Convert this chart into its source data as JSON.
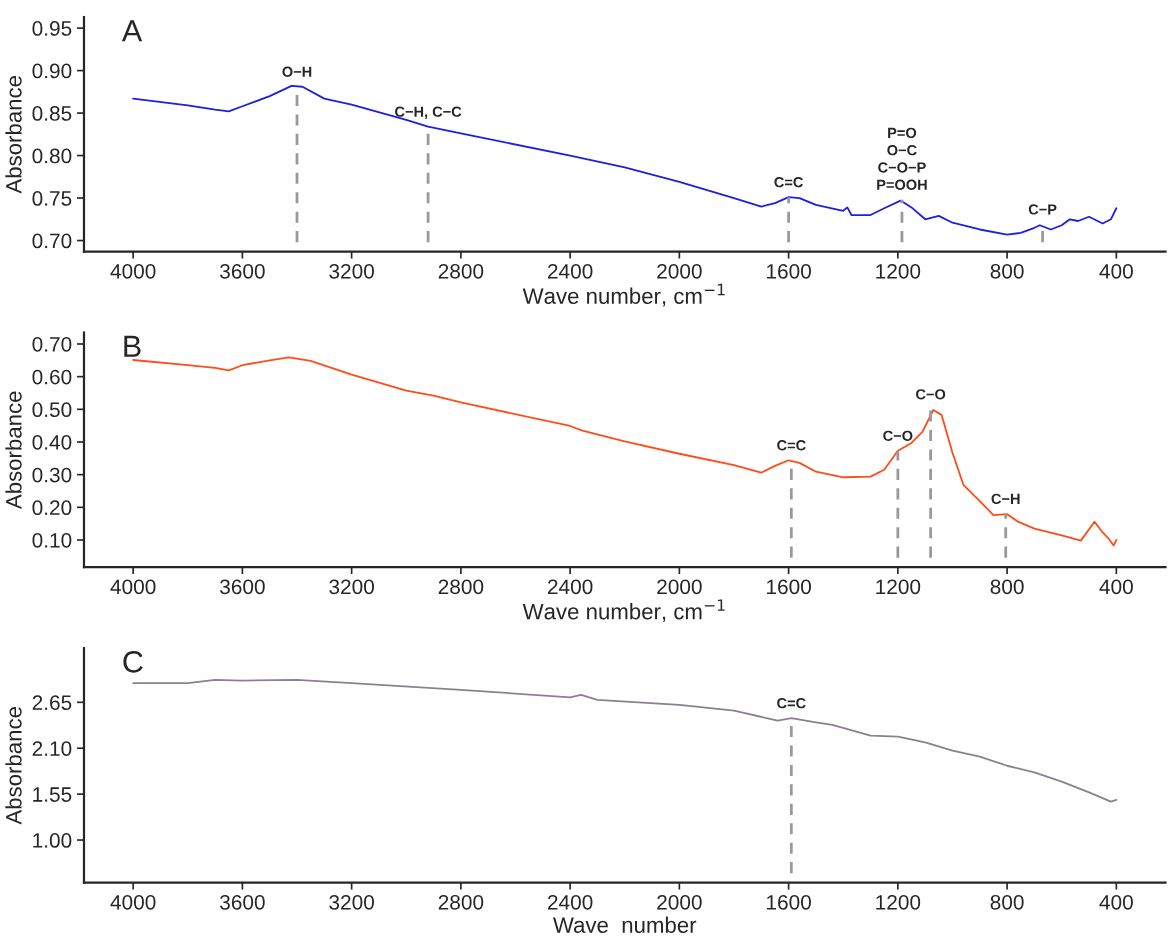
{
  "chart_data": [
    {
      "type": "line",
      "title": "A",
      "xlabel": "Wave number, cm$^{−1}$",
      "ylabel": "Absorbance",
      "x": [
        4000,
        3800,
        3700,
        3650,
        3600,
        3500,
        3420,
        3380,
        3300,
        3200,
        3000,
        2920,
        2800,
        2400,
        2200,
        2000,
        1800,
        1700,
        1650,
        1600,
        1560,
        1500,
        1400,
        1385,
        1370,
        1300,
        1250,
        1190,
        1150,
        1100,
        1050,
        1000,
        900,
        800,
        750,
        700,
        680,
        640,
        600,
        570,
        540,
        500,
        450,
        420,
        400
      ],
      "series": [
        {
          "color": "#1f1fdc",
          "values": [
            0.867,
            0.859,
            0.854,
            0.852,
            0.858,
            0.87,
            0.882,
            0.881,
            0.867,
            0.86,
            0.842,
            0.834,
            0.826,
            0.8,
            0.786,
            0.769,
            0.75,
            0.74,
            0.744,
            0.751,
            0.75,
            0.742,
            0.735,
            0.739,
            0.73,
            0.73,
            0.738,
            0.747,
            0.739,
            0.725,
            0.729,
            0.721,
            0.713,
            0.707,
            0.709,
            0.715,
            0.718,
            0.713,
            0.718,
            0.725,
            0.723,
            0.728,
            0.72,
            0.725,
            0.738
          ]
        }
      ],
      "xlim": [
        4180,
        220
      ],
      "xticks": [
        4000,
        3600,
        3200,
        2800,
        2400,
        2000,
        1600,
        1200,
        800,
        400
      ],
      "ylim": [
        0.687,
        0.963
      ],
      "yticks": [
        {
          "value": 0.7,
          "label": "0.70"
        },
        {
          "value": 0.75,
          "label": "0.75"
        },
        {
          "value": 0.8,
          "label": "0.80"
        },
        {
          "value": 0.85,
          "label": "0.85"
        },
        {
          "value": 0.9,
          "label": "0.90"
        },
        {
          "value": 0.95,
          "label": "0.95"
        }
      ],
      "annotations": [
        {
          "text": "O−H",
          "x": 3400,
          "y": 0.881
        },
        {
          "text": "C−H, C−C",
          "x": 2920,
          "y": 0.834
        },
        {
          "text": "C=C",
          "x": 1600,
          "y": 0.751
        },
        {
          "text": "P=O\nO−C\nC−O−P\nP=OOH",
          "x": 1185,
          "y": 0.748
        },
        {
          "text": "C−P",
          "x": 670,
          "y": 0.719
        }
      ],
      "grid": false,
      "legend": false
    },
    {
      "type": "line",
      "title": "B",
      "xlabel": "Wave number, cm$^{−1}$",
      "ylabel": "Absorbance",
      "x": [
        4000,
        3800,
        3700,
        3650,
        3600,
        3500,
        3430,
        3350,
        3200,
        3000,
        2900,
        2800,
        2400,
        2355,
        2200,
        2000,
        1800,
        1700,
        1650,
        1600,
        1560,
        1500,
        1400,
        1300,
        1250,
        1200,
        1150,
        1110,
        1070,
        1040,
        1000,
        960,
        900,
        850,
        800,
        760,
        700,
        600,
        530,
        480,
        450,
        430,
        410,
        400
      ],
      "series": [
        {
          "color": "#ff4d1a",
          "values": [
            0.651,
            0.635,
            0.627,
            0.619,
            0.635,
            0.65,
            0.659,
            0.648,
            0.606,
            0.557,
            0.542,
            0.521,
            0.449,
            0.435,
            0.402,
            0.364,
            0.329,
            0.306,
            0.327,
            0.344,
            0.336,
            0.309,
            0.292,
            0.294,
            0.315,
            0.373,
            0.397,
            0.431,
            0.498,
            0.483,
            0.367,
            0.269,
            0.219,
            0.176,
            0.179,
            0.156,
            0.135,
            0.114,
            0.098,
            0.156,
            0.123,
            0.106,
            0.083,
            0.1
          ]
        }
      ],
      "xlim": [
        4180,
        220
      ],
      "xticks": [
        4000,
        3600,
        3200,
        2800,
        2400,
        2000,
        1600,
        1200,
        800,
        400
      ],
      "ylim": [
        0.017,
        0.735
      ],
      "yticks": [
        {
          "value": 0.1,
          "label": "0.10"
        },
        {
          "value": 0.2,
          "label": "0.20"
        },
        {
          "value": 0.3,
          "label": "0.30"
        },
        {
          "value": 0.4,
          "label": "0.40"
        },
        {
          "value": 0.5,
          "label": "0.50"
        },
        {
          "value": 0.6,
          "label": "0.60"
        },
        {
          "value": 0.7,
          "label": "0.70"
        }
      ],
      "annotations": [
        {
          "text": "C=C",
          "x": 1590,
          "y": 0.344
        },
        {
          "text": "C−O",
          "x": 1200,
          "y": 0.373
        },
        {
          "text": "C−O",
          "x": 1080,
          "y": 0.5
        },
        {
          "text": "C−H",
          "x": 805,
          "y": 0.18
        }
      ],
      "grid": false,
      "legend": false
    },
    {
      "type": "line",
      "title": "C",
      "xlabel": "Wave  number",
      "ylabel": "Absorbance",
      "x": [
        4000,
        3800,
        3700,
        3600,
        3400,
        3200,
        2800,
        2400,
        2360,
        2300,
        2000,
        1800,
        1640,
        1590,
        1500,
        1440,
        1300,
        1200,
        1100,
        1000,
        900,
        800,
        700,
        600,
        500,
        420,
        400
      ],
      "series": [
        {
          "color": "#8c808e",
          "values": [
            2.88,
            2.88,
            2.92,
            2.91,
            2.92,
            2.88,
            2.8,
            2.71,
            2.74,
            2.68,
            2.62,
            2.55,
            2.43,
            2.46,
            2.41,
            2.38,
            2.25,
            2.24,
            2.17,
            2.07,
            2.0,
            1.89,
            1.81,
            1.7,
            1.57,
            1.46,
            1.48
          ]
        }
      ],
      "xlim": [
        4180,
        220
      ],
      "xticks": [
        4000,
        3600,
        3200,
        2800,
        2400,
        2000,
        1600,
        1200,
        800,
        400
      ],
      "ylim": [
        0.49,
        3.3
      ],
      "yticks": [
        {
          "value": 1.0,
          "label": "1.00"
        },
        {
          "value": 1.55,
          "label": "1.55"
        },
        {
          "value": 2.1,
          "label": "2.10"
        },
        {
          "value": 2.65,
          "label": "2.65"
        }
      ],
      "annotations": [
        {
          "text": "C=C",
          "x": 1590,
          "y": 2.46
        }
      ],
      "grid": false,
      "legend": false
    }
  ]
}
